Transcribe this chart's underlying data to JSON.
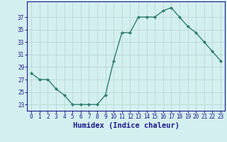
{
  "x": [
    0,
    1,
    2,
    3,
    4,
    5,
    6,
    7,
    8,
    9,
    10,
    11,
    12,
    13,
    14,
    15,
    16,
    17,
    18,
    19,
    20,
    21,
    22,
    23
  ],
  "y": [
    28,
    27,
    27,
    25.5,
    24.5,
    23,
    23,
    23,
    23,
    24.5,
    30,
    34.5,
    34.5,
    37,
    37,
    37,
    38,
    38.5,
    37,
    35.5,
    34.5,
    33,
    31.5,
    30
  ],
  "line_color": "#2e7d6e",
  "marker": "D",
  "markersize": 2.0,
  "linewidth": 1.0,
  "bg_color": "#d4efef",
  "grid_color": "#b8d8d8",
  "xlabel": "Humidex (Indice chaleur)",
  "xlim": [
    -0.5,
    23.5
  ],
  "ylim": [
    22,
    39.5
  ],
  "yticks": [
    23,
    25,
    27,
    29,
    31,
    33,
    35,
    37
  ],
  "xticks": [
    0,
    1,
    2,
    3,
    4,
    5,
    6,
    7,
    8,
    9,
    10,
    11,
    12,
    13,
    14,
    15,
    16,
    17,
    18,
    19,
    20,
    21,
    22,
    23
  ],
  "xtick_labels": [
    "0",
    "1",
    "2",
    "3",
    "4",
    "5",
    "6",
    "7",
    "8",
    "9",
    "10",
    "11",
    "12",
    "13",
    "14",
    "15",
    "16",
    "17",
    "18",
    "19",
    "20",
    "21",
    "22",
    "23"
  ],
  "tick_fontsize": 5.5,
  "xlabel_fontsize": 7.5,
  "text_color": "#1a1a8c"
}
